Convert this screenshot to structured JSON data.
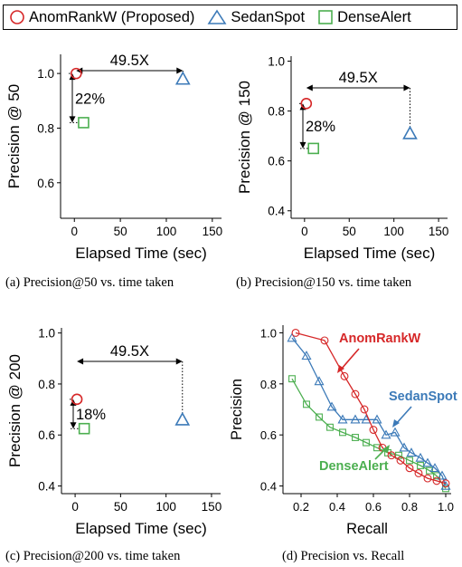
{
  "legend": {
    "items": [
      {
        "label": "AnomRankW (Proposed)",
        "marker": "circle",
        "color": "#d62728"
      },
      {
        "label": "SedanSpot",
        "marker": "triangle",
        "color": "#1f77b4"
      },
      {
        "label": "DenseAlert",
        "marker": "square",
        "color": "#4caf50"
      }
    ]
  },
  "captions": {
    "a": "(a)  Precision@50 vs. time taken",
    "b": "(b)  Precision@150 vs. time taken",
    "c": "(c)  Precision@200 vs. time taken",
    "d": "(d)  Precision vs. Recall"
  },
  "colors": {
    "anomrank": "#d62728",
    "sedanspot": "#3c7ab8",
    "densealert": "#4caf50"
  },
  "chart_data": [
    {
      "type": "scatter",
      "xlabel": "Elapsed Time (sec)",
      "ylabel": "Precision @ 50",
      "xlim": [
        -15,
        160
      ],
      "ylim": [
        0.47,
        1.07
      ],
      "xticks": [
        0,
        50,
        100,
        150
      ],
      "yticks": [
        0.6,
        0.8,
        1.0
      ],
      "tick_labels_y": [
        "0.6",
        "0.8",
        "1.0"
      ],
      "tick_labels_x": [
        "0",
        "50",
        "100",
        "150"
      ],
      "points": [
        {
          "method": "AnomRankW (Proposed)",
          "marker": "circle",
          "x": 2,
          "y": 1.0
        },
        {
          "method": "SedanSpot",
          "marker": "triangle",
          "x": 118,
          "y": 0.98
        },
        {
          "method": "DenseAlert",
          "marker": "square",
          "x": 10,
          "y": 0.82
        }
      ],
      "annotations": {
        "speedup": "49.5X",
        "improvement": "22%"
      }
    },
    {
      "type": "scatter",
      "xlabel": "Elapsed Time (sec)",
      "ylabel": "Precision @ 150",
      "xlim": [
        -15,
        160
      ],
      "ylim": [
        0.37,
        1.02
      ],
      "xticks": [
        0,
        50,
        100,
        150
      ],
      "yticks": [
        0.4,
        0.6,
        0.8,
        1.0
      ],
      "tick_labels_y": [
        "0.4",
        "0.6",
        "0.8",
        "1.0"
      ],
      "tick_labels_x": [
        "0",
        "50",
        "100",
        "150"
      ],
      "points": [
        {
          "method": "AnomRankW (Proposed)",
          "marker": "circle",
          "x": 2,
          "y": 0.83
        },
        {
          "method": "SedanSpot",
          "marker": "triangle",
          "x": 118,
          "y": 0.71
        },
        {
          "method": "DenseAlert",
          "marker": "square",
          "x": 10,
          "y": 0.65
        }
      ],
      "annotations": {
        "speedup": "49.5X",
        "improvement": "28%"
      }
    },
    {
      "type": "scatter",
      "xlabel": "Elapsed Time (sec)",
      "ylabel": "Precision @ 200",
      "xlim": [
        -15,
        160
      ],
      "ylim": [
        0.37,
        1.02
      ],
      "xticks": [
        0,
        50,
        100,
        150
      ],
      "yticks": [
        0.4,
        0.6,
        0.8,
        1.0
      ],
      "tick_labels_y": [
        "0.4",
        "0.6",
        "0.8",
        "1.0"
      ],
      "tick_labels_x": [
        "0",
        "50",
        "100",
        "150"
      ],
      "points": [
        {
          "method": "AnomRankW (Proposed)",
          "marker": "circle",
          "x": 2,
          "y": 0.74
        },
        {
          "method": "SedanSpot",
          "marker": "triangle",
          "x": 118,
          "y": 0.66
        },
        {
          "method": "DenseAlert",
          "marker": "square",
          "x": 10,
          "y": 0.625
        }
      ],
      "annotations": {
        "speedup": "49.5X",
        "improvement": "18%"
      }
    },
    {
      "type": "line",
      "xlabel": "Recall",
      "ylabel": "Precision",
      "xlim": [
        0.1,
        1.03
      ],
      "ylim": [
        0.37,
        1.03
      ],
      "xticks": [
        0.2,
        0.4,
        0.6,
        0.8,
        1.0
      ],
      "yticks": [
        0.4,
        0.6,
        0.8,
        1.0
      ],
      "tick_labels_x": [
        "0.2",
        "0.4",
        "0.6",
        "0.8",
        "1.0"
      ],
      "tick_labels_y": [
        "0.4",
        "0.6",
        "0.8",
        "1.0"
      ],
      "series": [
        {
          "name": "AnomRankW",
          "marker": "circle",
          "x": [
            0.17,
            0.33,
            0.44,
            0.5,
            0.55,
            0.6,
            0.65,
            0.7,
            0.75,
            0.8,
            0.85,
            0.9,
            0.95,
            1.0
          ],
          "y": [
            1.0,
            0.97,
            0.83,
            0.76,
            0.7,
            0.62,
            0.55,
            0.52,
            0.5,
            0.47,
            0.45,
            0.43,
            0.42,
            0.41
          ]
        },
        {
          "name": "SedanSpot",
          "marker": "triangle",
          "x": [
            0.15,
            0.23,
            0.3,
            0.37,
            0.43,
            0.5,
            0.56,
            0.62,
            0.67,
            0.72,
            0.77,
            0.81,
            0.86,
            0.9,
            0.94,
            0.98,
            1.0
          ],
          "y": [
            0.98,
            0.91,
            0.81,
            0.71,
            0.66,
            0.66,
            0.66,
            0.66,
            0.6,
            0.61,
            0.55,
            0.53,
            0.51,
            0.49,
            0.47,
            0.44,
            0.4
          ]
        },
        {
          "name": "DenseAlert",
          "marker": "square",
          "x": [
            0.15,
            0.23,
            0.3,
            0.36,
            0.43,
            0.5,
            0.56,
            0.62,
            0.68,
            0.74,
            0.8,
            0.86,
            0.91,
            0.95,
            1.0
          ],
          "y": [
            0.82,
            0.72,
            0.67,
            0.63,
            0.61,
            0.59,
            0.57,
            0.55,
            0.53,
            0.52,
            0.5,
            0.48,
            0.46,
            0.44,
            0.39
          ]
        }
      ],
      "annotations": {
        "AnomRankW": "AnomRankW",
        "SedanSpot": "SedanSpot",
        "DenseAlert": "DenseAlert"
      }
    }
  ]
}
